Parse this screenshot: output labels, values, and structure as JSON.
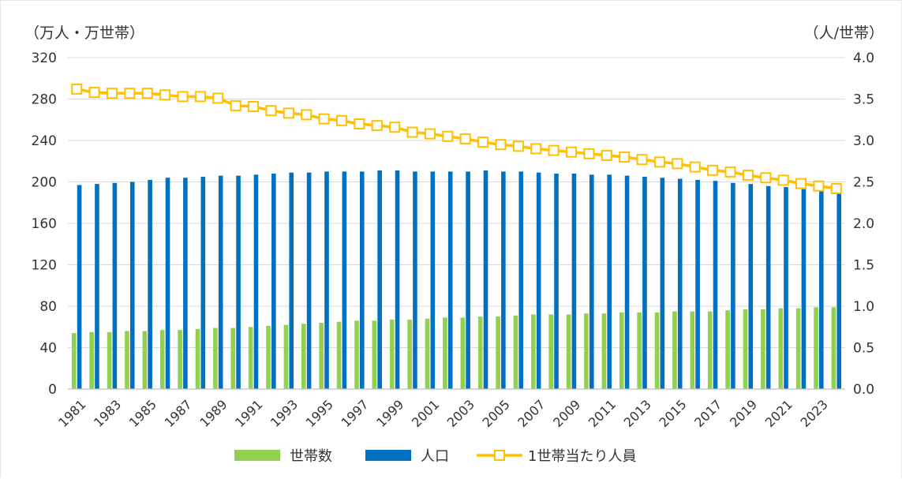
{
  "chart_data": {
    "type": "bar",
    "y_left_label": "（万人・万世帯）",
    "y_right_label": "（人/世帯）",
    "y_left_range": [
      0,
      320
    ],
    "y_left_ticks": [
      "0",
      "40",
      "80",
      "120",
      "160",
      "200",
      "240",
      "280",
      "320"
    ],
    "y_right_range": [
      0.0,
      4.0
    ],
    "y_right_ticks": [
      "0.0",
      "0.5",
      "1.0",
      "1.5",
      "2.0",
      "2.5",
      "3.0",
      "3.5",
      "4.0"
    ],
    "grid": true,
    "legend_position": "bottom",
    "categories": [
      "1981",
      "1982",
      "1983",
      "1984",
      "1985",
      "1986",
      "1987",
      "1988",
      "1989",
      "1990",
      "1991",
      "1992",
      "1993",
      "1994",
      "1995",
      "1996",
      "1997",
      "1998",
      "1999",
      "2000",
      "2001",
      "2002",
      "2003",
      "2004",
      "2005",
      "2006",
      "2007",
      "2008",
      "2009",
      "2010",
      "2011",
      "2012",
      "2013",
      "2014",
      "2015",
      "2016",
      "2017",
      "2018",
      "2019",
      "2020",
      "2021",
      "2022",
      "2023",
      "2024"
    ],
    "x_tick_labels": [
      "1981",
      "1983",
      "1985",
      "1987",
      "1989",
      "1991",
      "1993",
      "1995",
      "1997",
      "1999",
      "2001",
      "2003",
      "2005",
      "2007",
      "2009",
      "2011",
      "2013",
      "2015",
      "2017",
      "2019",
      "2021",
      "2023"
    ],
    "series": [
      {
        "name": "世帯数",
        "type": "bar",
        "axis": "left",
        "color": "#92d050",
        "values": [
          54,
          55,
          55,
          56,
          56,
          57,
          57,
          58,
          59,
          59,
          60,
          61,
          62,
          63,
          64,
          65,
          66,
          66,
          67,
          67,
          68,
          69,
          69,
          70,
          70,
          71,
          72,
          72,
          72,
          73,
          73,
          74,
          74,
          74,
          75,
          75,
          75,
          76,
          77,
          77,
          78,
          78,
          79,
          79
        ]
      },
      {
        "name": "人口",
        "type": "bar",
        "axis": "left",
        "color": "#0070c0",
        "values": [
          197,
          198,
          199,
          200,
          202,
          204,
          204,
          205,
          206,
          206,
          207,
          208,
          209,
          209,
          210,
          210,
          210,
          211,
          211,
          210,
          210,
          210,
          210,
          211,
          210,
          210,
          209,
          208,
          208,
          207,
          207,
          206,
          205,
          204,
          203,
          202,
          201,
          199,
          198,
          196,
          195,
          193,
          192,
          191
        ]
      },
      {
        "name": "1世帯当たり人員",
        "type": "line",
        "axis": "right",
        "color": "#ffc000",
        "values": [
          3.62,
          3.58,
          3.57,
          3.57,
          3.57,
          3.55,
          3.53,
          3.53,
          3.51,
          3.42,
          3.41,
          3.36,
          3.33,
          3.31,
          3.26,
          3.24,
          3.2,
          3.18,
          3.16,
          3.1,
          3.08,
          3.05,
          3.02,
          2.98,
          2.95,
          2.93,
          2.9,
          2.88,
          2.86,
          2.84,
          2.82,
          2.8,
          2.77,
          2.74,
          2.72,
          2.68,
          2.64,
          2.62,
          2.58,
          2.55,
          2.52,
          2.48,
          2.45,
          2.42
        ]
      }
    ]
  }
}
